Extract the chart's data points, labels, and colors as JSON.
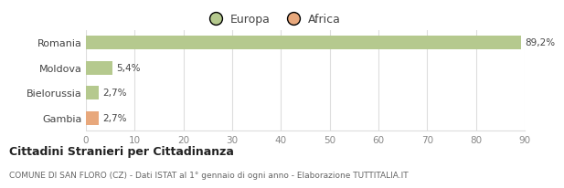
{
  "categories": [
    "Romania",
    "Moldova",
    "Bielorussia",
    "Gambia"
  ],
  "values": [
    89.2,
    5.4,
    2.7,
    2.7
  ],
  "labels": [
    "89,2%",
    "5,4%",
    "2,7%",
    "2,7%"
  ],
  "colors": [
    "#b5c98e",
    "#b5c98e",
    "#b5c98e",
    "#e8a87c"
  ],
  "bar_height": 0.55,
  "xlim": [
    0,
    90
  ],
  "xticks": [
    0,
    10,
    20,
    30,
    40,
    50,
    60,
    70,
    80,
    90
  ],
  "legend_europa_color": "#b5c98e",
  "legend_africa_color": "#e8a87c",
  "title": "Cittadini Stranieri per Cittadinanza",
  "subtitle": "COMUNE DI SAN FLORO (CZ) - Dati ISTAT al 1° gennaio di ogni anno - Elaborazione TUTTITALIA.IT",
  "background_color": "#ffffff",
  "grid_color": "#dddddd",
  "text_color_dark": "#444444",
  "text_color_light": "#888888"
}
